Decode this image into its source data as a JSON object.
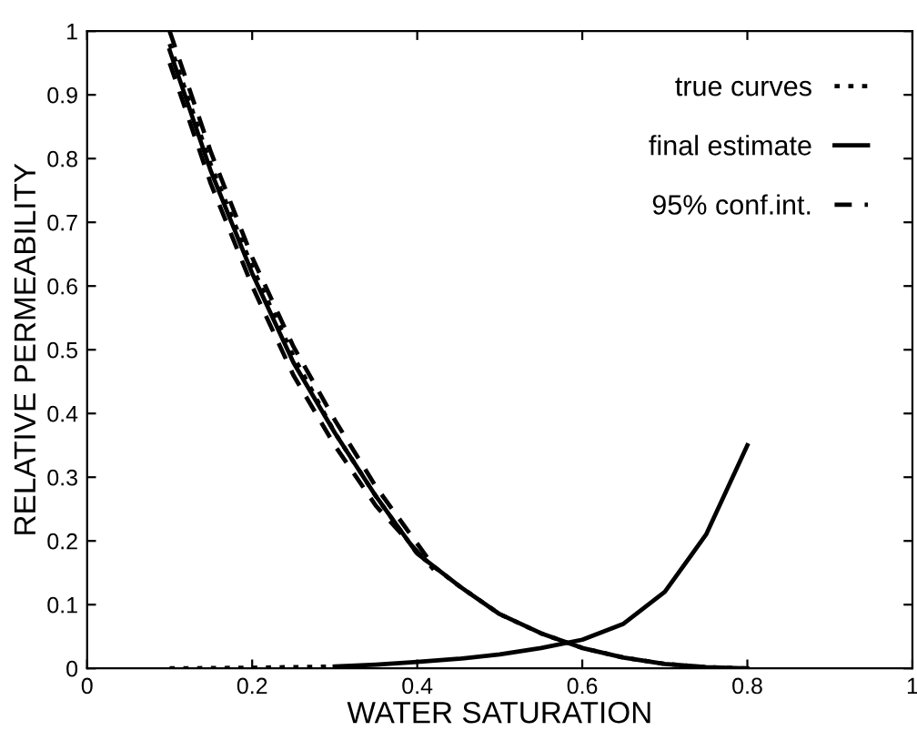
{
  "chart_data": {
    "type": "line",
    "xlabel": "WATER SATURATION",
    "ylabel": "RELATIVE PERMEABILITY",
    "xlim": [
      0,
      1
    ],
    "ylim": [
      0,
      1
    ],
    "xticks": [
      0,
      0.2,
      0.4,
      0.6,
      0.8,
      1
    ],
    "yticks": [
      0,
      0.1,
      0.2,
      0.3,
      0.4,
      0.5,
      0.6,
      0.7,
      0.8,
      0.9,
      1
    ],
    "grid": false,
    "legend": "top right",
    "marker": "none",
    "series": [
      {
        "name": "true curves",
        "color": "#000000",
        "line_style": "dotted",
        "x": [
          0.1,
          0.15,
          0.2,
          0.25,
          0.3,
          0.35,
          0.4,
          0.45,
          0.5,
          0.55,
          0.6,
          0.65,
          0.7,
          0.75,
          0.8
        ],
        "values": [
          0.98,
          0.79,
          0.63,
          0.49,
          0.37,
          0.27,
          0.18,
          0.13,
          0.085,
          0.055,
          0.032,
          0.017,
          0.007,
          0.002,
          0
        ]
      },
      {
        "name": "final estimate",
        "color": "#000000",
        "line_style": "solid",
        "x": [
          0.1,
          0.15,
          0.2,
          0.25,
          0.3,
          0.35,
          0.4,
          0.45,
          0.5,
          0.55,
          0.6,
          0.65,
          0.7,
          0.75,
          0.8
        ],
        "values": [
          0.97,
          0.78,
          0.62,
          0.48,
          0.37,
          0.27,
          0.18,
          0.13,
          0.085,
          0.055,
          0.032,
          0.017,
          0.007,
          0.002,
          0
        ]
      },
      {
        "name": "95% conf.int.",
        "color": "#000000",
        "line_style": "dashed",
        "x": [
          0.1,
          0.15,
          0.2,
          0.25,
          0.3,
          0.35,
          0.42
        ],
        "values": [
          1.0,
          0.81,
          0.645,
          0.505,
          0.39,
          0.285,
          0.16
        ]
      },
      {
        "color": "#000000",
        "line_style": "dashed",
        "x": [
          0.1,
          0.15,
          0.2,
          0.25,
          0.3,
          0.35,
          0.42
        ],
        "values": [
          0.95,
          0.76,
          0.6,
          0.46,
          0.35,
          0.255,
          0.155
        ]
      },
      {
        "color": "#000000",
        "line_style": "dotted",
        "x": [
          0.1,
          0.2,
          0.3
        ],
        "values": [
          0,
          0.001,
          0.003
        ]
      },
      {
        "color": "#000000",
        "line_style": "solid",
        "x": [
          0.3,
          0.35,
          0.4,
          0.45,
          0.5,
          0.55,
          0.6,
          0.65,
          0.7,
          0.75,
          0.8
        ],
        "values": [
          0.003,
          0.006,
          0.01,
          0.015,
          0.022,
          0.032,
          0.045,
          0.07,
          0.12,
          0.21,
          0.35
        ]
      }
    ]
  }
}
